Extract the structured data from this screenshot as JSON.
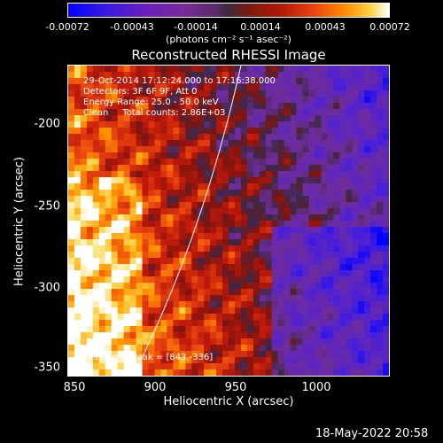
{
  "colorbar": {
    "ticks": [
      "-0.00072",
      "-0.00043",
      "-0.00014",
      "0.00014",
      "0.00043",
      "0.00072"
    ],
    "unit_text": "(photons cm⁻² s⁻¹ asec⁻²)"
  },
  "plot": {
    "title": "Reconstructed RHESSI Image",
    "info": {
      "line1": "29-Oct-2014 17:12:24.000 to 17:16:38.000",
      "line2": "Detectors: 3F 6F 9F, Att 0",
      "line3": "Energy Range: 25.0 - 50.0 keV",
      "line4": "Clean     Total counts: 2.86E+03"
    },
    "peak": "Position of Peak = [843,-336]"
  },
  "axes": {
    "xlabel": "Heliocentric X (arcsec)",
    "ylabel": "Heliocentric Y (arcsec)",
    "xticks": [
      "850",
      "900",
      "950",
      "1000"
    ],
    "yticks": [
      "-200",
      "-250",
      "-300",
      "-350"
    ]
  },
  "timestamp": "18-May-2022 20:58",
  "colors": {
    "background": "#000000",
    "text": "#ffffff",
    "limb": "#ffffff"
  }
}
